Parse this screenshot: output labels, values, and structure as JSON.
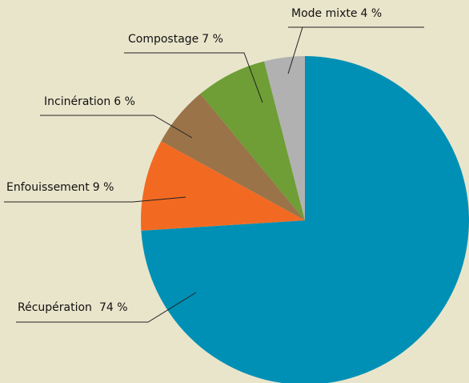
{
  "chart_data": {
    "type": "pie",
    "categories": [
      "Récupération",
      "Enfouissement",
      "Incinération",
      "Compostage",
      "Mode mixte"
    ],
    "values": [
      74,
      9,
      6,
      7,
      4
    ],
    "value_labels": [
      "74 %",
      "9 %",
      "6 %",
      "7 %",
      "4 %"
    ],
    "colors": [
      "#0090b5",
      "#f26a22",
      "#9a7349",
      "#6e9e35",
      "#b1b1b1"
    ],
    "start_angle": "top",
    "direction": "clockwise"
  }
}
